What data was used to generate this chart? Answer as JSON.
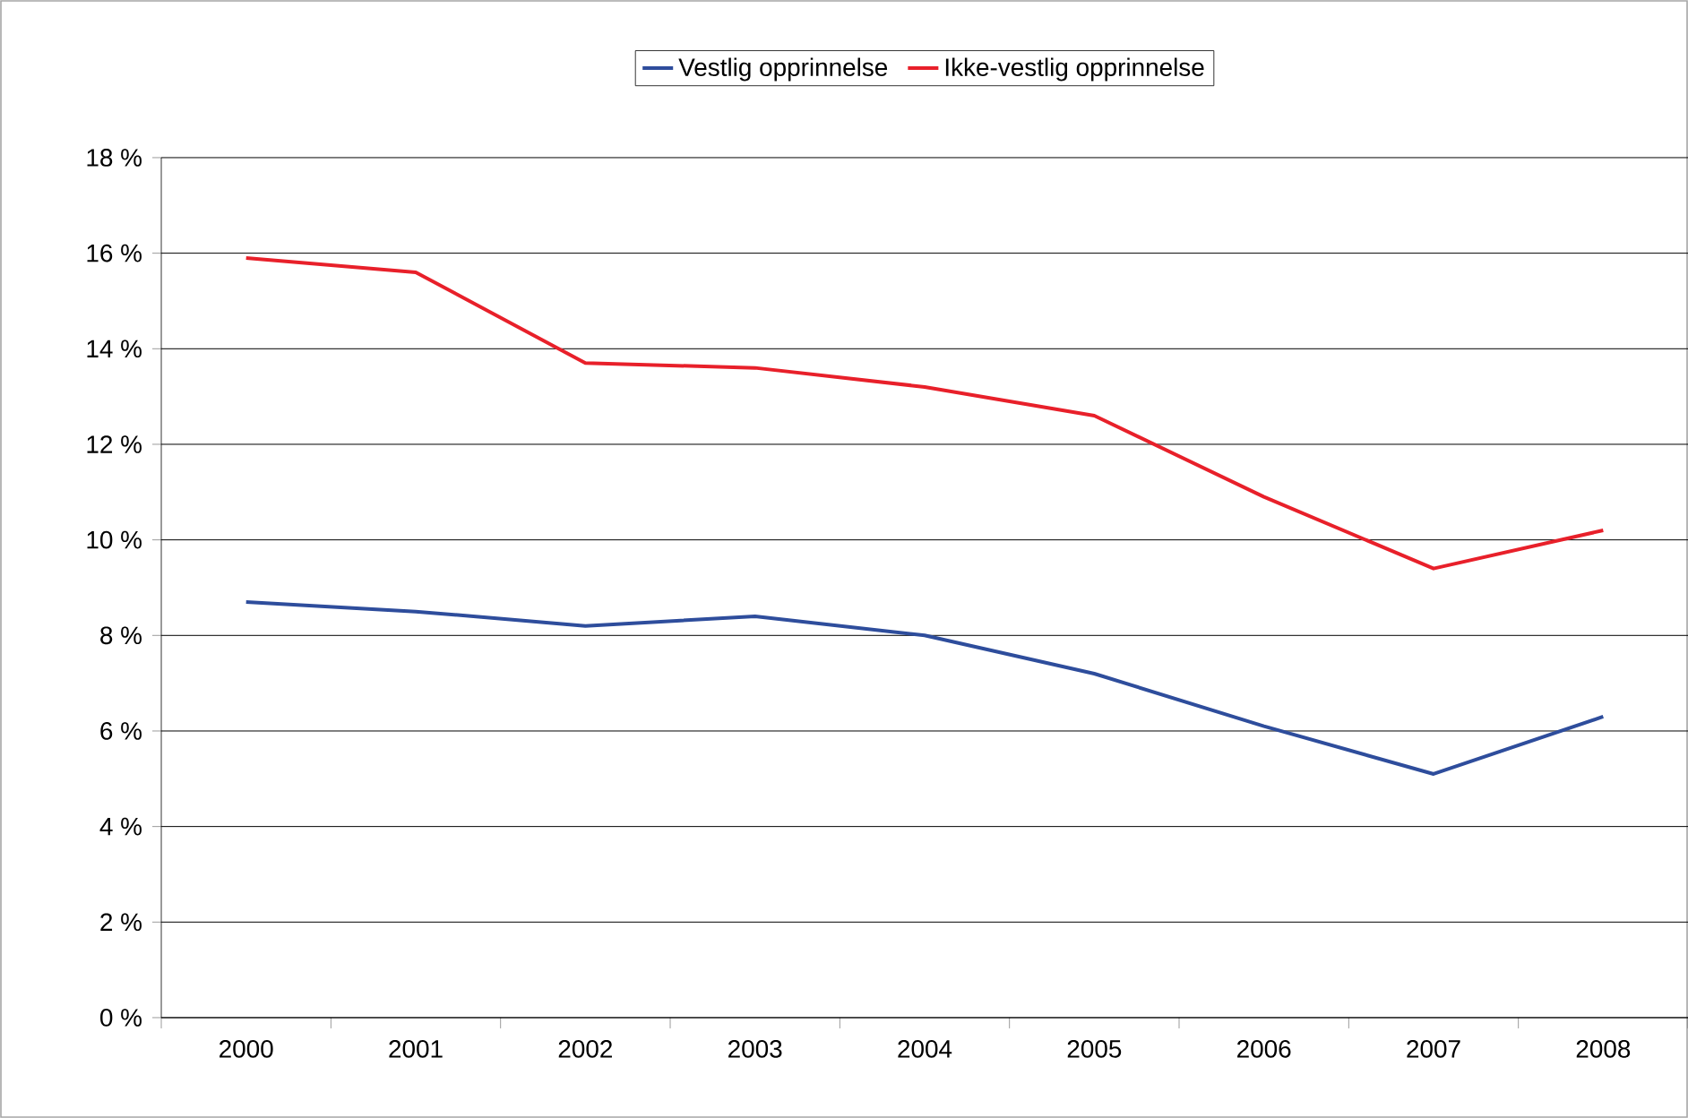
{
  "chart_data": {
    "type": "line",
    "categories": [
      "2000",
      "2001",
      "2002",
      "2003",
      "2004",
      "2005",
      "2006",
      "2007",
      "2008"
    ],
    "series": [
      {
        "name": "Vestlig opprinnelse",
        "color": "#2e4d9c",
        "values": [
          8.7,
          8.5,
          8.2,
          8.4,
          8.0,
          7.2,
          6.1,
          5.1,
          6.3
        ]
      },
      {
        "name": "Ikke-vestlig opprinnelse",
        "color": "#e8202a",
        "values": [
          15.9,
          15.6,
          13.7,
          13.6,
          13.2,
          12.6,
          10.9,
          9.4,
          10.2
        ]
      }
    ],
    "ylim": [
      0,
      18
    ],
    "yticks": [
      {
        "value": 0,
        "label": "0 %"
      },
      {
        "value": 2,
        "label": "2 %"
      },
      {
        "value": 4,
        "label": "4 %"
      },
      {
        "value": 6,
        "label": "6 %"
      },
      {
        "value": 8,
        "label": "8 %"
      },
      {
        "value": 10,
        "label": "10 %"
      },
      {
        "value": 12,
        "label": "12 %"
      },
      {
        "value": 14,
        "label": "14 %"
      },
      {
        "value": 16,
        "label": "16 %"
      },
      {
        "value": 18,
        "label": "18 %"
      }
    ],
    "grid": "y",
    "legend": "top",
    "marker": "none",
    "line_style": "solid"
  }
}
